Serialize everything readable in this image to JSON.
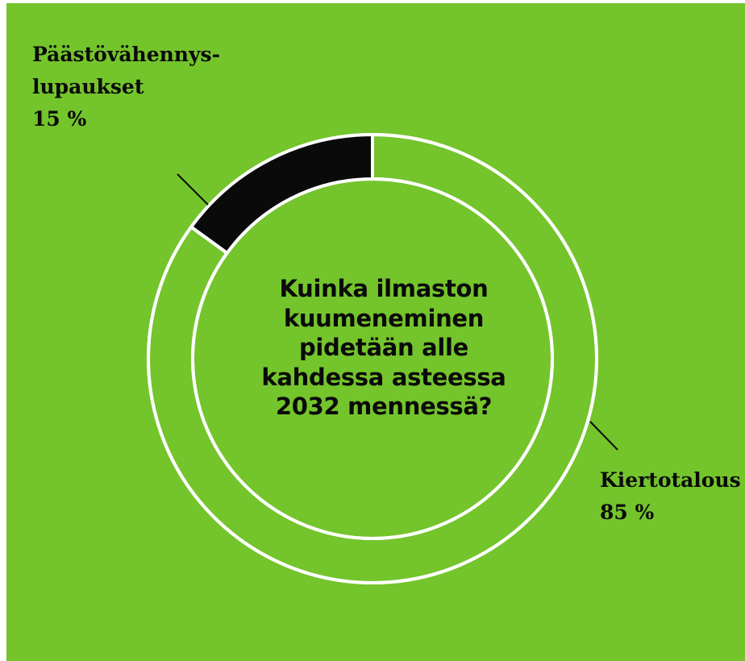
{
  "colors": {
    "background": "#74c42c",
    "ring_outline": "#ffffff",
    "highlight_slice": "#0a0a0a",
    "text": "#0a0a0a"
  },
  "chart_data": {
    "type": "pie",
    "variant": "donut",
    "center_text_lines": [
      "Kuinka ilmaston",
      "kuumeneminen",
      "pidetään alle",
      "kahdessa asteessa",
      "2032 mennessä?"
    ],
    "slices": [
      {
        "label_lines": [
          "Päästövähennys-",
          "lupaukset"
        ],
        "value_label": "15 %",
        "value": 15,
        "fill": "#0a0a0a"
      },
      {
        "label_lines": [
          "Kiertotalous"
        ],
        "value_label": "85 %",
        "value": 85,
        "fill": "none"
      }
    ],
    "legend": "none"
  }
}
